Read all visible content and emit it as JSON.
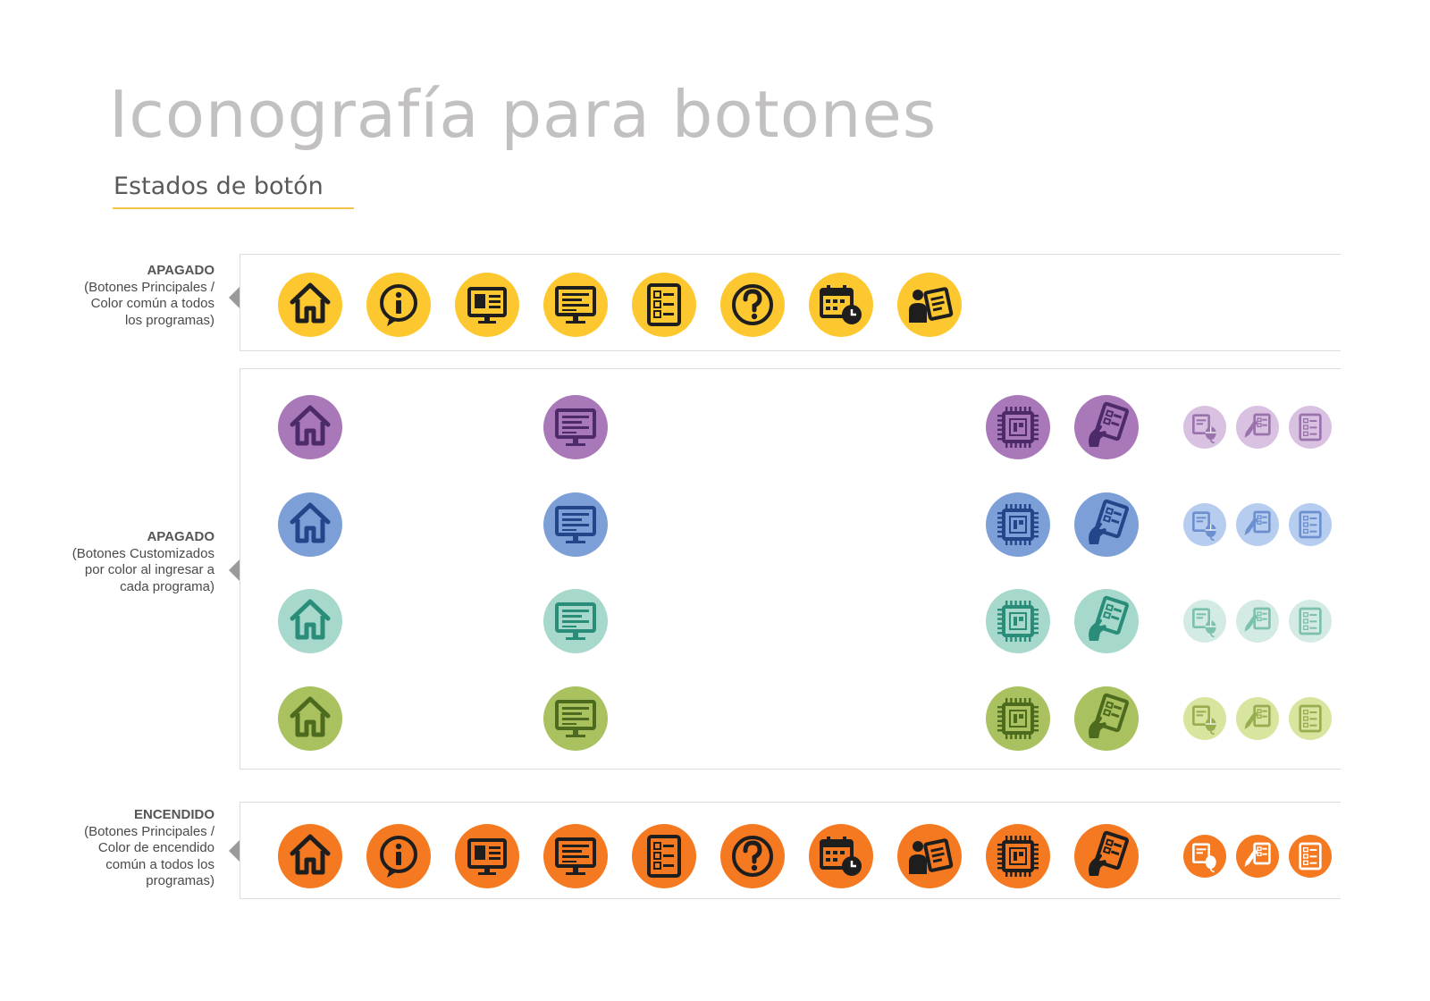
{
  "title": "Iconografía para botones",
  "subtitle": "Estados de botón",
  "colors": {
    "yellow": "#fdc82f",
    "orange": "#f47920",
    "purple": "#a878b8",
    "blue": "#7d9fd8",
    "teal": "#a6d8cc",
    "green": "#a9c15f",
    "purple_light": "#d9c1e2",
    "blue_light": "#b7cdf0",
    "teal_light": "#d3ebe4",
    "green_light": "#d7e59e"
  },
  "sections": [
    {
      "title": "APAGADO",
      "description": "(Botones Principales /\nColor común a todos\nlos programas)"
    },
    {
      "title": "APAGADO",
      "description": "(Botones Customizados\npor color al ingresar a\ncada programa)"
    },
    {
      "title": "ENCENDIDO",
      "description": "(Botones Principales /\nColor de encendido\ncomún a todos los\nprogramas)"
    }
  ],
  "icon_names": [
    "home",
    "info",
    "newspaper",
    "monitor",
    "form",
    "question",
    "calendar-clock",
    "user-document",
    "chip",
    "hand-document",
    "pen-mouse",
    "pencil-form",
    "form-small"
  ]
}
